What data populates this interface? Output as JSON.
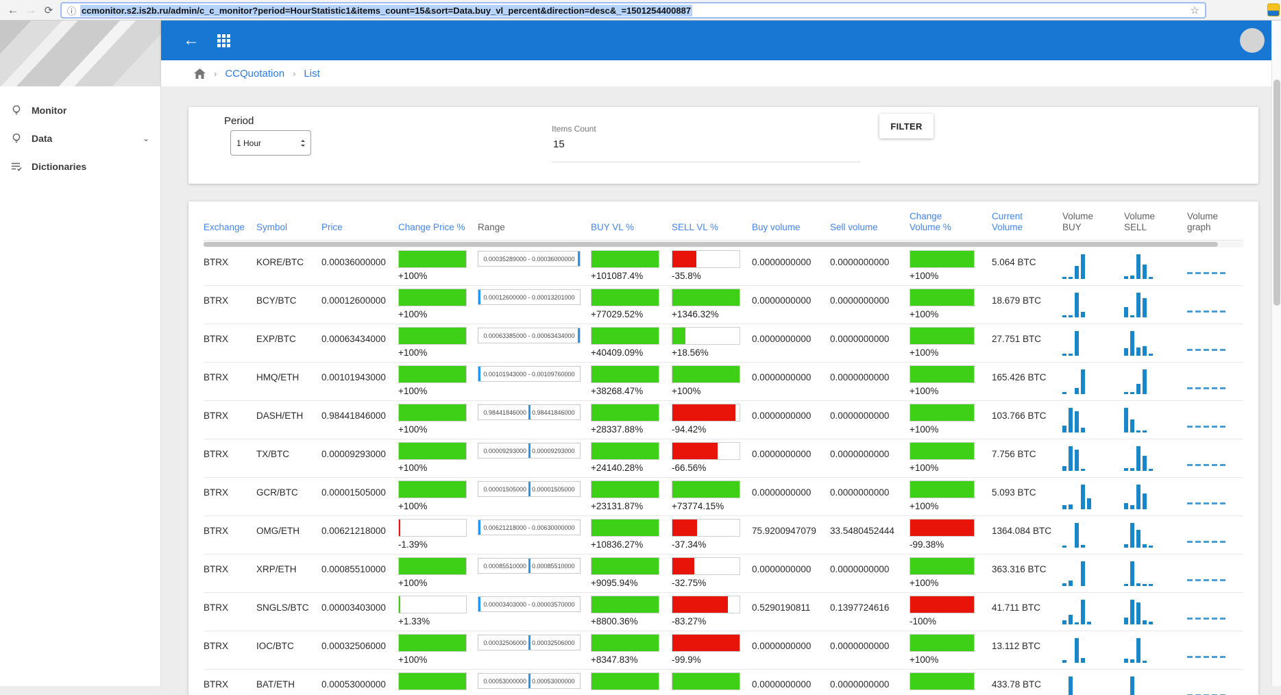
{
  "browser": {
    "url": "ccmonitor.s2.is2b.ru/admin/c_c_monitor?period=HourStatistic1&items_count=15&sort=Data.buy_vl_percent&direction=desc&_=1501254400887",
    "icons": {
      "back": "←",
      "forward": "→",
      "reload": "⟳",
      "info": "ⓘ",
      "star": "☆"
    }
  },
  "header": {
    "back_icon": "←"
  },
  "breadcrumb": {
    "items": [
      "CCQuotation",
      "List"
    ],
    "separator": "›"
  },
  "sidebar": {
    "items": [
      {
        "label": "Monitor",
        "icon": "bulb-icon",
        "expandable": false
      },
      {
        "label": "Data",
        "icon": "bulb-icon",
        "expandable": true
      },
      {
        "label": "Dictionaries",
        "icon": "list-check-icon",
        "expandable": false
      }
    ]
  },
  "filters": {
    "period_label": "Period",
    "period_value": "1 Hour",
    "items_count_label": "Items Count",
    "items_count_value": "15",
    "filter_button": "FILTER"
  },
  "colors": {
    "accent_blue": "#1877d2",
    "link_blue": "#4285f4",
    "green": "#3ed016",
    "red": "#e91409",
    "chart_blue": "#1787c9",
    "range_marker": "#2196f3"
  },
  "table": {
    "columns": [
      {
        "label": "Exchange",
        "sortable": true
      },
      {
        "label": "Symbol",
        "sortable": true
      },
      {
        "label": "Price",
        "sortable": true
      },
      {
        "label": "Change Price %",
        "sortable": true
      },
      {
        "label": "Range",
        "sortable": false
      },
      {
        "label": "BUY VL %",
        "sortable": true
      },
      {
        "label": "SELL VL %",
        "sortable": true
      },
      {
        "label": "Buy volume",
        "sortable": true
      },
      {
        "label": "Sell volume",
        "sortable": true
      },
      {
        "label": "Change Volume %",
        "sortable": true
      },
      {
        "label": "Current Volume",
        "sortable": true
      },
      {
        "label": "Volume BUY",
        "sortable": false
      },
      {
        "label": "Volume SELL",
        "sortable": false
      },
      {
        "label": "Volume graph",
        "sortable": false
      }
    ],
    "rows": [
      {
        "exchange": "BTRX",
        "symbol": "KORE/BTC",
        "price": "0.00036000000",
        "change_price": {
          "label": "+100%",
          "pct": 100,
          "color": "green"
        },
        "range": {
          "text": "0.00035289000 - 0.00036000000",
          "marker": "right"
        },
        "buy_vl": {
          "label": "+101087.4%",
          "pct": 100,
          "color": "green"
        },
        "sell_vl": {
          "label": "-35.8%",
          "pct": 36,
          "color": "red"
        },
        "buy_volume": "0.0000000000",
        "sell_volume": "0.0000000000",
        "change_volume": {
          "label": "+100%",
          "pct": 100,
          "color": "green"
        },
        "current_volume": "5.064 BTC",
        "volume_buy_bars": [
          4,
          6,
          52,
          100,
          0
        ],
        "volume_sell_bars": [
          10,
          14,
          100,
          58,
          6
        ]
      },
      {
        "exchange": "BTRX",
        "symbol": "BCY/BTC",
        "price": "0.00012600000",
        "change_price": {
          "label": "+100%",
          "pct": 100,
          "color": "green"
        },
        "range": {
          "text": "0.00012600000 - 0.00013201000",
          "marker": "left"
        },
        "buy_vl": {
          "label": "+77029.52%",
          "pct": 100,
          "color": "green"
        },
        "sell_vl": {
          "label": "+1346.32%",
          "pct": 100,
          "color": "green"
        },
        "buy_volume": "0.0000000000",
        "sell_volume": "0.0000000000",
        "change_volume": {
          "label": "+100%",
          "pct": 100,
          "color": "green"
        },
        "current_volume": "18.679 BTC",
        "volume_buy_bars": [
          8,
          4,
          100,
          22,
          0
        ],
        "volume_sell_bars": [
          42,
          6,
          100,
          78,
          0
        ]
      },
      {
        "exchange": "BTRX",
        "symbol": "EXP/BTC",
        "price": "0.00063434000",
        "change_price": {
          "label": "+100%",
          "pct": 100,
          "color": "green"
        },
        "range": {
          "text": "0.00063385000 - 0.00063434000",
          "marker": "right"
        },
        "buy_vl": {
          "label": "+40409.09%",
          "pct": 100,
          "color": "green"
        },
        "sell_vl": {
          "label": "+18.56%",
          "pct": 19,
          "color": "green"
        },
        "buy_volume": "0.0000000000",
        "sell_volume": "0.0000000000",
        "change_volume": {
          "label": "+100%",
          "pct": 100,
          "color": "green"
        },
        "current_volume": "27.751 BTC",
        "volume_buy_bars": [
          4,
          4,
          100,
          0,
          0
        ],
        "volume_sell_bars": [
          30,
          100,
          32,
          38,
          6
        ]
      },
      {
        "exchange": "BTRX",
        "symbol": "HMQ/ETH",
        "price": "0.00101943000",
        "change_price": {
          "label": "+100%",
          "pct": 100,
          "color": "green"
        },
        "range": {
          "text": "0.00101943000 - 0.00109760000",
          "marker": "left"
        },
        "buy_vl": {
          "label": "+38268.47%",
          "pct": 100,
          "color": "green"
        },
        "sell_vl": {
          "label": "+100%",
          "pct": 100,
          "color": "green"
        },
        "buy_volume": "0.0000000000",
        "sell_volume": "0.0000000000",
        "change_volume": {
          "label": "+100%",
          "pct": 100,
          "color": "green"
        },
        "current_volume": "165.426 BTC",
        "volume_buy_bars": [
          6,
          0,
          24,
          100,
          0
        ],
        "volume_sell_bars": [
          6,
          5,
          42,
          100,
          0
        ]
      },
      {
        "exchange": "BTRX",
        "symbol": "DASH/ETH",
        "price": "0.98441846000",
        "change_price": {
          "label": "+100%",
          "pct": 100,
          "color": "green"
        },
        "range": {
          "text": "0.98441846000 - 0.98441846000",
          "marker": "center"
        },
        "buy_vl": {
          "label": "+28337.88%",
          "pct": 100,
          "color": "green"
        },
        "sell_vl": {
          "label": "-94.42%",
          "pct": 94,
          "color": "red"
        },
        "buy_volume": "0.0000000000",
        "sell_volume": "0.0000000000",
        "change_volume": {
          "label": "+100%",
          "pct": 100,
          "color": "green"
        },
        "current_volume": "103.766 BTC",
        "volume_buy_bars": [
          28,
          100,
          85,
          20,
          0
        ],
        "volume_sell_bars": [
          100,
          52,
          8,
          4,
          0
        ]
      },
      {
        "exchange": "BTRX",
        "symbol": "TX/BTC",
        "price": "0.00009293000",
        "change_price": {
          "label": "+100%",
          "pct": 100,
          "color": "green"
        },
        "range": {
          "text": "0.00009293000 - 0.00009293000",
          "marker": "center"
        },
        "buy_vl": {
          "label": "+24140.28%",
          "pct": 100,
          "color": "green"
        },
        "sell_vl": {
          "label": "-66.56%",
          "pct": 67,
          "color": "red"
        },
        "buy_volume": "0.0000000000",
        "sell_volume": "0.0000000000",
        "change_volume": {
          "label": "+100%",
          "pct": 100,
          "color": "green"
        },
        "current_volume": "7.756 BTC",
        "volume_buy_bars": [
          20,
          100,
          85,
          8,
          0
        ],
        "volume_sell_bars": [
          10,
          10,
          100,
          60,
          8
        ]
      },
      {
        "exchange": "BTRX",
        "symbol": "GCR/BTC",
        "price": "0.00001505000",
        "change_price": {
          "label": "+100%",
          "pct": 100,
          "color": "green"
        },
        "range": {
          "text": "0.00001505000 - 0.00001505000",
          "marker": "center"
        },
        "buy_vl": {
          "label": "+23131.87%",
          "pct": 100,
          "color": "green"
        },
        "sell_vl": {
          "label": "+73774.15%",
          "pct": 100,
          "color": "green"
        },
        "buy_volume": "0.0000000000",
        "sell_volume": "0.0000000000",
        "change_volume": {
          "label": "+100%",
          "pct": 100,
          "color": "green"
        },
        "current_volume": "5.093 BTC",
        "volume_buy_bars": [
          16,
          20,
          0,
          100,
          45
        ],
        "volume_sell_bars": [
          25,
          18,
          100,
          65,
          0
        ]
      },
      {
        "exchange": "BTRX",
        "symbol": "OMG/ETH",
        "price": "0.00621218000",
        "change_price": {
          "label": "-1.39%",
          "pct": 2,
          "color": "red"
        },
        "range": {
          "text": "0.00621218000 - 0.00630000000",
          "marker": "left"
        },
        "buy_vl": {
          "label": "+10836.27%",
          "pct": 100,
          "color": "green"
        },
        "sell_vl": {
          "label": "-37.34%",
          "pct": 37,
          "color": "red"
        },
        "buy_volume": "75.9200947079",
        "sell_volume": "33.5480452444",
        "change_volume": {
          "label": "-99.38%",
          "pct": 100,
          "color": "red"
        },
        "current_volume": "1364.084 BTC",
        "volume_buy_bars": [
          8,
          0,
          100,
          10,
          0
        ],
        "volume_sell_bars": [
          14,
          100,
          72,
          14,
          5
        ]
      },
      {
        "exchange": "BTRX",
        "symbol": "XRP/ETH",
        "price": "0.00085510000",
        "change_price": {
          "label": "+100%",
          "pct": 100,
          "color": "green"
        },
        "range": {
          "text": "0.00085510000 - 0.00085510000",
          "marker": "center"
        },
        "buy_vl": {
          "label": "+9095.94%",
          "pct": 100,
          "color": "green"
        },
        "sell_vl": {
          "label": "-32.75%",
          "pct": 33,
          "color": "red"
        },
        "buy_volume": "0.0000000000",
        "sell_volume": "0.0000000000",
        "change_volume": {
          "label": "+100%",
          "pct": 100,
          "color": "green"
        },
        "current_volume": "363.316 BTC",
        "volume_buy_bars": [
          12,
          22,
          0,
          100,
          0
        ],
        "volume_sell_bars": [
          6,
          100,
          12,
          8,
          8
        ]
      },
      {
        "exchange": "BTRX",
        "symbol": "SNGLS/BTC",
        "price": "0.00003403000",
        "change_price": {
          "label": "+1.33%",
          "pct": 2,
          "color": "green"
        },
        "range": {
          "text": "0.00003403000 - 0.00003570000",
          "marker": "left"
        },
        "buy_vl": {
          "label": "+8800.36%",
          "pct": 100,
          "color": "green"
        },
        "sell_vl": {
          "label": "-83.27%",
          "pct": 83,
          "color": "red"
        },
        "buy_volume": "0.5290190811",
        "sell_volume": "0.1397724616",
        "change_volume": {
          "label": "-100%",
          "pct": 100,
          "color": "red"
        },
        "current_volume": "41.711 BTC",
        "volume_buy_bars": [
          16,
          38,
          4,
          100,
          12
        ],
        "volume_sell_bars": [
          28,
          100,
          88,
          16,
          12
        ]
      },
      {
        "exchange": "BTRX",
        "symbol": "IOC/BTC",
        "price": "0.00032506000",
        "change_price": {
          "label": "+100%",
          "pct": 100,
          "color": "green"
        },
        "range": {
          "text": "0.00032506000 - 0.00032506000",
          "marker": "center"
        },
        "buy_vl": {
          "label": "+8347.83%",
          "pct": 100,
          "color": "green"
        },
        "sell_vl": {
          "label": "-99.9%",
          "pct": 100,
          "color": "red"
        },
        "buy_volume": "0.0000000000",
        "sell_volume": "0.0000000000",
        "change_volume": {
          "label": "+100%",
          "pct": 100,
          "color": "green"
        },
        "current_volume": "13.112 BTC",
        "volume_buy_bars": [
          10,
          0,
          100,
          20,
          0
        ],
        "volume_sell_bars": [
          18,
          14,
          100,
          6,
          0
        ]
      },
      {
        "exchange": "BTRX",
        "symbol": "BAT/ETH",
        "price": "0.00053000000",
        "change_price": {
          "label": "",
          "pct": 100,
          "color": "green"
        },
        "range": {
          "text": "0.00053000000 - 0.00053000000",
          "marker": "center"
        },
        "buy_vl": {
          "label": "",
          "pct": 100,
          "color": "green"
        },
        "sell_vl": {
          "label": "",
          "pct": 100,
          "color": "green"
        },
        "buy_volume": "0.0000000000",
        "sell_volume": "0.0000000000",
        "change_volume": {
          "label": "",
          "pct": 100,
          "color": "green"
        },
        "current_volume": "433.78 BTC",
        "volume_buy_bars": [
          12,
          100,
          0,
          0,
          0
        ],
        "volume_sell_bars": [
          0,
          100,
          0,
          0,
          0
        ]
      }
    ]
  }
}
